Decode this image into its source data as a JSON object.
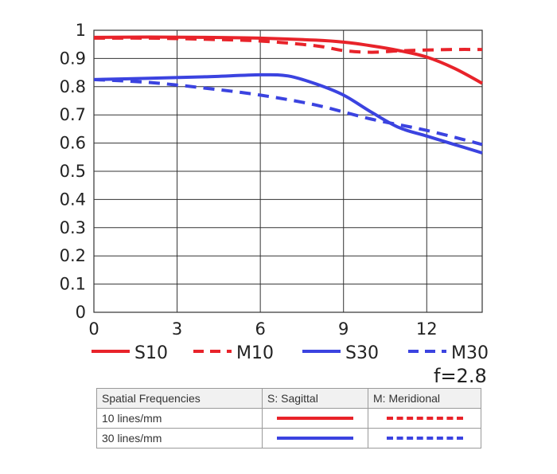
{
  "chart_data": {
    "type": "line",
    "title": "",
    "xlabel": "",
    "ylabel": "",
    "xlim": [
      0,
      14
    ],
    "ylim": [
      0,
      1
    ],
    "x_ticks": [
      "0",
      "3",
      "6",
      "9",
      "12"
    ],
    "y_ticks": [
      "0",
      "0.1",
      "0.2",
      "0.3",
      "0.4",
      "0.5",
      "0.6",
      "0.7",
      "0.8",
      "0.9",
      "1"
    ],
    "grid": true,
    "legend_position": "bottom",
    "series": [
      {
        "name": "S10",
        "color": "#e8232a",
        "dash": false,
        "x": [
          0,
          2,
          4,
          6,
          8,
          9,
          10,
          11,
          12,
          13,
          14
        ],
        "y": [
          0.975,
          0.976,
          0.975,
          0.972,
          0.965,
          0.958,
          0.945,
          0.928,
          0.905,
          0.865,
          0.812
        ]
      },
      {
        "name": "M10",
        "color": "#e8232a",
        "dash": true,
        "x": [
          0,
          2,
          4,
          6,
          8,
          9,
          10,
          11,
          12,
          13,
          14
        ],
        "y": [
          0.972,
          0.972,
          0.968,
          0.962,
          0.945,
          0.928,
          0.922,
          0.927,
          0.93,
          0.932,
          0.932
        ]
      },
      {
        "name": "S30",
        "color": "#3b43e0",
        "dash": false,
        "x": [
          0,
          2,
          4,
          6,
          7,
          8,
          9,
          10,
          11,
          12,
          13,
          14
        ],
        "y": [
          0.825,
          0.83,
          0.835,
          0.842,
          0.838,
          0.81,
          0.77,
          0.71,
          0.655,
          0.625,
          0.595,
          0.565
        ]
      },
      {
        "name": "M30",
        "color": "#3b43e0",
        "dash": true,
        "x": [
          0,
          2,
          4,
          6,
          8,
          10,
          12,
          14
        ],
        "y": [
          0.825,
          0.815,
          0.795,
          0.77,
          0.735,
          0.685,
          0.645,
          0.595
        ]
      }
    ]
  },
  "aperture_label": "f=2.8",
  "key_table": {
    "header": [
      "Spatial Frequencies",
      "S: Sagittal",
      "M: Meridional"
    ],
    "rows": [
      "10 lines/mm",
      "30 lines/mm"
    ]
  }
}
